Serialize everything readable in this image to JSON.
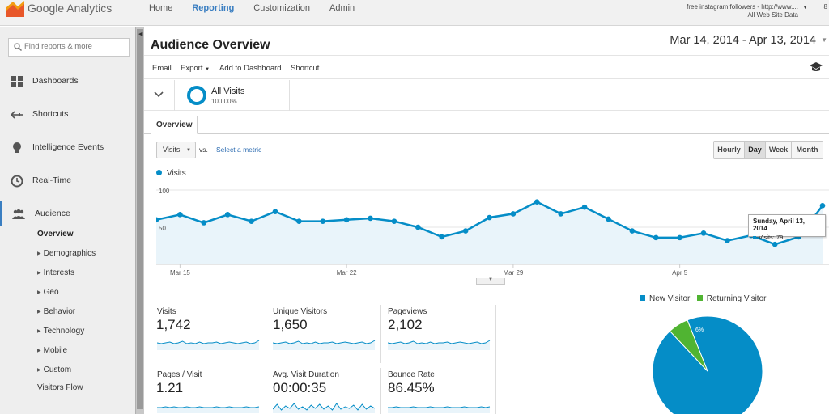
{
  "app": {
    "name": "Google Analytics",
    "nav": [
      "Home",
      "Reporting",
      "Customization",
      "Admin"
    ],
    "active_nav": 1,
    "account_email": "",
    "account_name": "free instagram followers - http://www....",
    "account_view": "All Web Site Data",
    "edge_text": "8"
  },
  "sidebar": {
    "search_placeholder": "Find reports & more",
    "sections": [
      {
        "label": "Dashboards",
        "icon": "dashboard-grid-icon"
      },
      {
        "label": "Shortcuts",
        "icon": "shortcut-arrow-icon"
      },
      {
        "label": "Intelligence Events",
        "icon": "lightbulb-icon"
      },
      {
        "label": "Real-Time",
        "icon": "clock-icon"
      },
      {
        "label": "Audience",
        "icon": "people-icon"
      }
    ],
    "audience_items": [
      "Overview",
      "Demographics",
      "Interests",
      "Geo",
      "Behavior",
      "Technology",
      "Mobile",
      "Custom",
      "Visitors Flow"
    ]
  },
  "report": {
    "title": "Audience Overview",
    "date_range": "Mar 14, 2014 - Apr 13, 2014",
    "toolbar": [
      "Email",
      "Export",
      "Add to Dashboard",
      "Shortcut"
    ],
    "segment": {
      "name": "All Visits",
      "percent": "100.00%"
    },
    "tab": "Overview",
    "metric_select": "Visits",
    "vs_label": "vs.",
    "select_metric_label": "Select a metric",
    "granularity": [
      "Hourly",
      "Day",
      "Week",
      "Month"
    ],
    "active_granularity": 1,
    "colors": {
      "accent": "#058dc7",
      "green": "#50b432",
      "link": "#2a6ab0"
    }
  },
  "chart_data": [
    {
      "type": "area",
      "series": [
        {
          "name": "Visits",
          "values": [
            60,
            67,
            56,
            67,
            58,
            71,
            58,
            58,
            60,
            62,
            58,
            50,
            37,
            45,
            63,
            68,
            84,
            68,
            77,
            61,
            45,
            36,
            36,
            42,
            32,
            39,
            27,
            37,
            79
          ]
        }
      ],
      "x_tick_labels": [
        "Mar 15",
        "Mar 22",
        "Mar 29",
        "Apr 5"
      ],
      "y_tick_labels": [
        "100",
        "50"
      ],
      "ylim": [
        0,
        100
      ],
      "tooltip": {
        "date": "Sunday, April 13, 2014",
        "label": "Visits: 79"
      }
    },
    {
      "type": "pie",
      "slices": [
        {
          "name": "New Visitor",
          "value": 94
        },
        {
          "name": "Returning Visitor",
          "value": 6
        }
      ],
      "slice_label": "6%",
      "legend": "top"
    }
  ],
  "metrics": [
    {
      "label": "Visits",
      "value": "1,742"
    },
    {
      "label": "Unique Visitors",
      "value": "1,650"
    },
    {
      "label": "Pageviews",
      "value": "2,102"
    },
    {
      "label": "Pages / Visit",
      "value": "1.21"
    },
    {
      "label": "Avg. Visit Duration",
      "value": "00:00:35"
    },
    {
      "label": "Bounce Rate",
      "value": "86.45%"
    }
  ]
}
